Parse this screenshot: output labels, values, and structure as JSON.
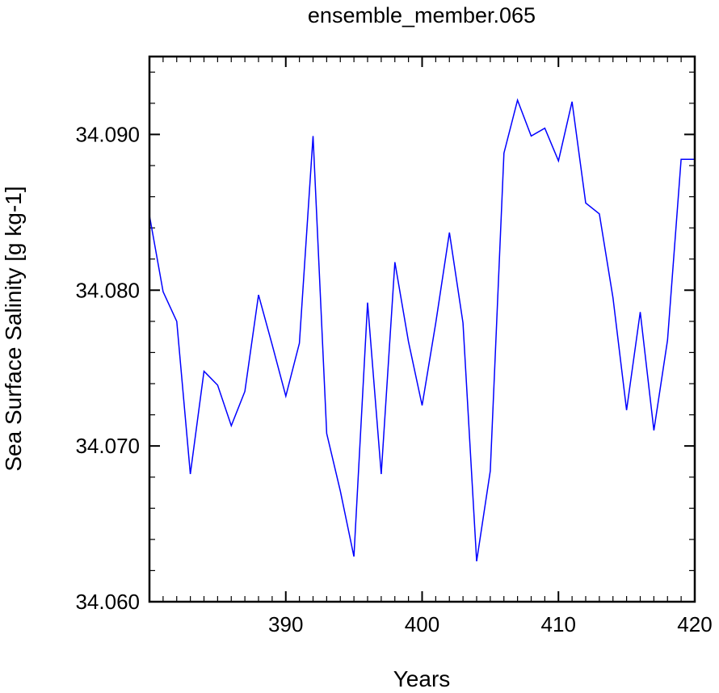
{
  "chart_data": {
    "type": "line",
    "title": "ensemble_member.065",
    "xlabel": "Years",
    "ylabel": "Sea Surface Salinity [g kg-1]",
    "xlim": [
      380,
      420
    ],
    "ylim": [
      34.06,
      34.095
    ],
    "x_ticks": [
      390,
      400,
      410,
      420
    ],
    "x_tick_labels": [
      "390",
      "400",
      "410",
      "420"
    ],
    "y_ticks": [
      34.06,
      34.07,
      34.08,
      34.09
    ],
    "y_tick_labels": [
      "34.060",
      "34.070",
      "34.080",
      "34.090"
    ],
    "grid": false,
    "line_color": "#0000ff",
    "series": [
      {
        "x": [
          380,
          381,
          382,
          383,
          384,
          385,
          386,
          387,
          388,
          389,
          390,
          391,
          392,
          393,
          394,
          395,
          396,
          397,
          398,
          399,
          400,
          401,
          402,
          403,
          404,
          405,
          406,
          407,
          408,
          409,
          410,
          411,
          412,
          413,
          414,
          415,
          416,
          417,
          418,
          419,
          420
        ],
        "values": [
          34.0848,
          34.0799,
          34.078,
          34.0682,
          34.0748,
          34.0739,
          34.0713,
          34.0735,
          34.0797,
          34.0765,
          34.0732,
          34.0766,
          34.0899,
          34.0708,
          34.0671,
          34.0629,
          34.0792,
          34.0682,
          34.0818,
          34.0767,
          34.0726,
          34.0779,
          34.0837,
          34.0779,
          34.0626,
          34.0684,
          34.0888,
          34.0922,
          34.0899,
          34.0904,
          34.0883,
          34.0921,
          34.0856,
          34.0849,
          34.0795,
          34.0723,
          34.0786,
          34.071,
          34.0768,
          34.0884,
          34.0884
        ]
      }
    ]
  }
}
